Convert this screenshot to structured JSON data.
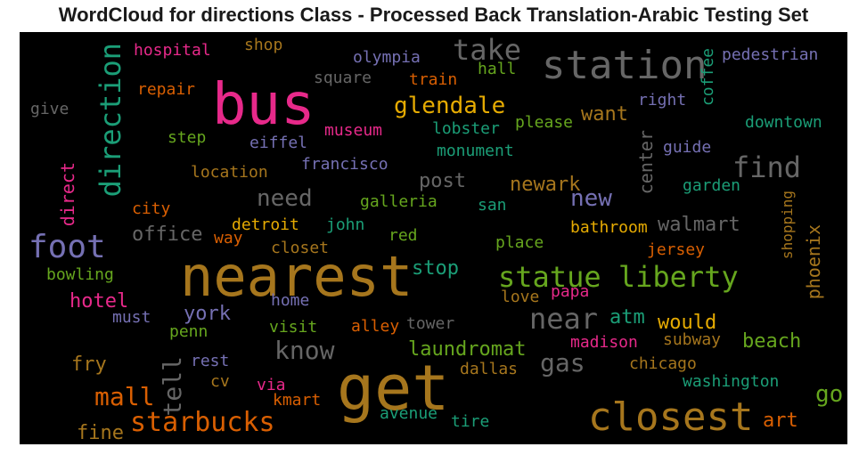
{
  "title": "WordCloud for directions Class - Processed Back Translation-Arabic Testing Set",
  "words": [
    {
      "text": "nearest",
      "color": "#a6761d"
    },
    {
      "text": "get",
      "color": "#a6761d"
    },
    {
      "text": "bus",
      "color": "#e7298a"
    },
    {
      "text": "station",
      "color": "#666666"
    },
    {
      "text": "closest",
      "color": "#a6761d"
    },
    {
      "text": "statue liberty",
      "color": "#66a61e"
    },
    {
      "text": "foot",
      "color": "#7570b3"
    },
    {
      "text": "direction",
      "color": "#1b9e77"
    },
    {
      "text": "take",
      "color": "#666666"
    },
    {
      "text": "near",
      "color": "#666666"
    },
    {
      "text": "find",
      "color": "#666666"
    },
    {
      "text": "starbucks",
      "color": "#d95f02"
    },
    {
      "text": "glendale",
      "color": "#e6ab02"
    },
    {
      "text": "mall",
      "color": "#d95f02"
    },
    {
      "text": "know",
      "color": "#666666"
    },
    {
      "text": "tell",
      "color": "#666666"
    },
    {
      "text": "new",
      "color": "#7570b3"
    },
    {
      "text": "need",
      "color": "#666666"
    },
    {
      "text": "gas",
      "color": "#666666"
    },
    {
      "text": "go",
      "color": "#66a61e"
    },
    {
      "text": "walmart",
      "color": "#666666"
    },
    {
      "text": "center",
      "color": "#666666"
    },
    {
      "text": "direct",
      "color": "#e7298a"
    },
    {
      "text": "office",
      "color": "#666666"
    },
    {
      "text": "would",
      "color": "#e6ab02"
    },
    {
      "text": "hotel",
      "color": "#e7298a"
    },
    {
      "text": "york",
      "color": "#7570b3"
    },
    {
      "text": "want",
      "color": "#a6761d"
    },
    {
      "text": "post",
      "color": "#666666"
    },
    {
      "text": "newark",
      "color": "#a6761d"
    },
    {
      "text": "laundromat",
      "color": "#66a61e"
    },
    {
      "text": "beach",
      "color": "#66a61e"
    },
    {
      "text": "phoenix",
      "color": "#a6761d"
    },
    {
      "text": "fry",
      "color": "#a6761d"
    },
    {
      "text": "fine",
      "color": "#a6761d"
    },
    {
      "text": "art",
      "color": "#d95f02"
    },
    {
      "text": "stop",
      "color": "#1b9e77"
    },
    {
      "text": "atm",
      "color": "#1b9e77"
    },
    {
      "text": "hospital",
      "color": "#e7298a"
    },
    {
      "text": "shop",
      "color": "#a6761d"
    },
    {
      "text": "olympia",
      "color": "#7570b3"
    },
    {
      "text": "pedestrian",
      "color": "#7570b3"
    },
    {
      "text": "hall",
      "color": "#66a61e"
    },
    {
      "text": "train",
      "color": "#d95f02"
    },
    {
      "text": "square",
      "color": "#666666"
    },
    {
      "text": "coffee",
      "color": "#1b9e77"
    },
    {
      "text": "repair",
      "color": "#d95f02"
    },
    {
      "text": "give",
      "color": "#666666"
    },
    {
      "text": "right",
      "color": "#7570b3"
    },
    {
      "text": "please",
      "color": "#66a61e"
    },
    {
      "text": "downtown",
      "color": "#1b9e77"
    },
    {
      "text": "lobster",
      "color": "#1b9e77"
    },
    {
      "text": "museum",
      "color": "#e7298a"
    },
    {
      "text": "step",
      "color": "#66a61e"
    },
    {
      "text": "eiffel",
      "color": "#7570b3"
    },
    {
      "text": "guide",
      "color": "#7570b3"
    },
    {
      "text": "monument",
      "color": "#1b9e77"
    },
    {
      "text": "francisco",
      "color": "#7570b3"
    },
    {
      "text": "location",
      "color": "#a6761d"
    },
    {
      "text": "garden",
      "color": "#1b9e77"
    },
    {
      "text": "shopping",
      "color": "#a6761d"
    },
    {
      "text": "city",
      "color": "#d95f02"
    },
    {
      "text": "galleria",
      "color": "#66a61e"
    },
    {
      "text": "san",
      "color": "#1b9e77"
    },
    {
      "text": "detroit",
      "color": "#e6ab02"
    },
    {
      "text": "john",
      "color": "#1b9e77"
    },
    {
      "text": "bathroom",
      "color": "#e6ab02"
    },
    {
      "text": "way",
      "color": "#d95f02"
    },
    {
      "text": "red",
      "color": "#66a61e"
    },
    {
      "text": "place",
      "color": "#66a61e"
    },
    {
      "text": "closet",
      "color": "#a6761d"
    },
    {
      "text": "jersey",
      "color": "#d95f02"
    },
    {
      "text": "bowling",
      "color": "#66a61e"
    },
    {
      "text": "home",
      "color": "#7570b3"
    },
    {
      "text": "love",
      "color": "#a6761d"
    },
    {
      "text": "papa",
      "color": "#e7298a"
    },
    {
      "text": "must",
      "color": "#7570b3"
    },
    {
      "text": "penn",
      "color": "#66a61e"
    },
    {
      "text": "visit",
      "color": "#66a61e"
    },
    {
      "text": "alley",
      "color": "#d95f02"
    },
    {
      "text": "tower",
      "color": "#666666"
    },
    {
      "text": "madison",
      "color": "#e7298a"
    },
    {
      "text": "subway",
      "color": "#a6761d"
    },
    {
      "text": "rest",
      "color": "#7570b3"
    },
    {
      "text": "dallas",
      "color": "#a6761d"
    },
    {
      "text": "chicago",
      "color": "#a6761d"
    },
    {
      "text": "cv",
      "color": "#a6761d"
    },
    {
      "text": "via",
      "color": "#e7298a"
    },
    {
      "text": "washington",
      "color": "#1b9e77"
    },
    {
      "text": "kmart",
      "color": "#d95f02"
    },
    {
      "text": "avenue",
      "color": "#1b9e77"
    },
    {
      "text": "tire",
      "color": "#1b9e77"
    }
  ]
}
